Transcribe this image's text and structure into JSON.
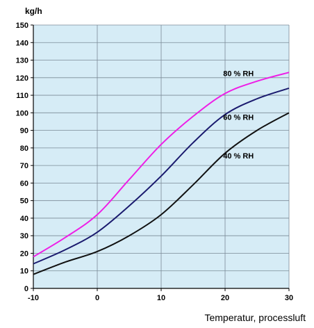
{
  "chart_data": {
    "type": "line",
    "title": "",
    "ylabel": "kg/h",
    "xlabel": "Temperatur, processluft",
    "xlim": [
      -10,
      30
    ],
    "ylim": [
      0,
      150
    ],
    "x_ticks": [
      -10,
      0,
      10,
      20,
      30
    ],
    "y_ticks": [
      0,
      10,
      20,
      30,
      40,
      50,
      60,
      70,
      80,
      90,
      100,
      110,
      120,
      130,
      140,
      150
    ],
    "grid": true,
    "plot_background": "#d6ecf6",
    "grid_color": "#7a8a96",
    "series": [
      {
        "name": "80 % RH",
        "color": "#ee1ee6",
        "x": [
          -10,
          -5,
          0,
          5,
          10,
          15,
          20,
          25,
          30
        ],
        "y": [
          18,
          29,
          42,
          62,
          82,
          98,
          111,
          118,
          123
        ]
      },
      {
        "name": "60 % RH",
        "color": "#1a1a6e",
        "x": [
          -10,
          -5,
          0,
          5,
          10,
          15,
          20,
          25,
          30
        ],
        "y": [
          14,
          22,
          32,
          47,
          64,
          83,
          99,
          108,
          114
        ]
      },
      {
        "name": "40 % RH",
        "color": "#111111",
        "x": [
          -10,
          -5,
          0,
          5,
          10,
          15,
          20,
          25,
          30
        ],
        "y": [
          8,
          15,
          21,
          30,
          42,
          59,
          77,
          90,
          100
        ]
      }
    ]
  }
}
